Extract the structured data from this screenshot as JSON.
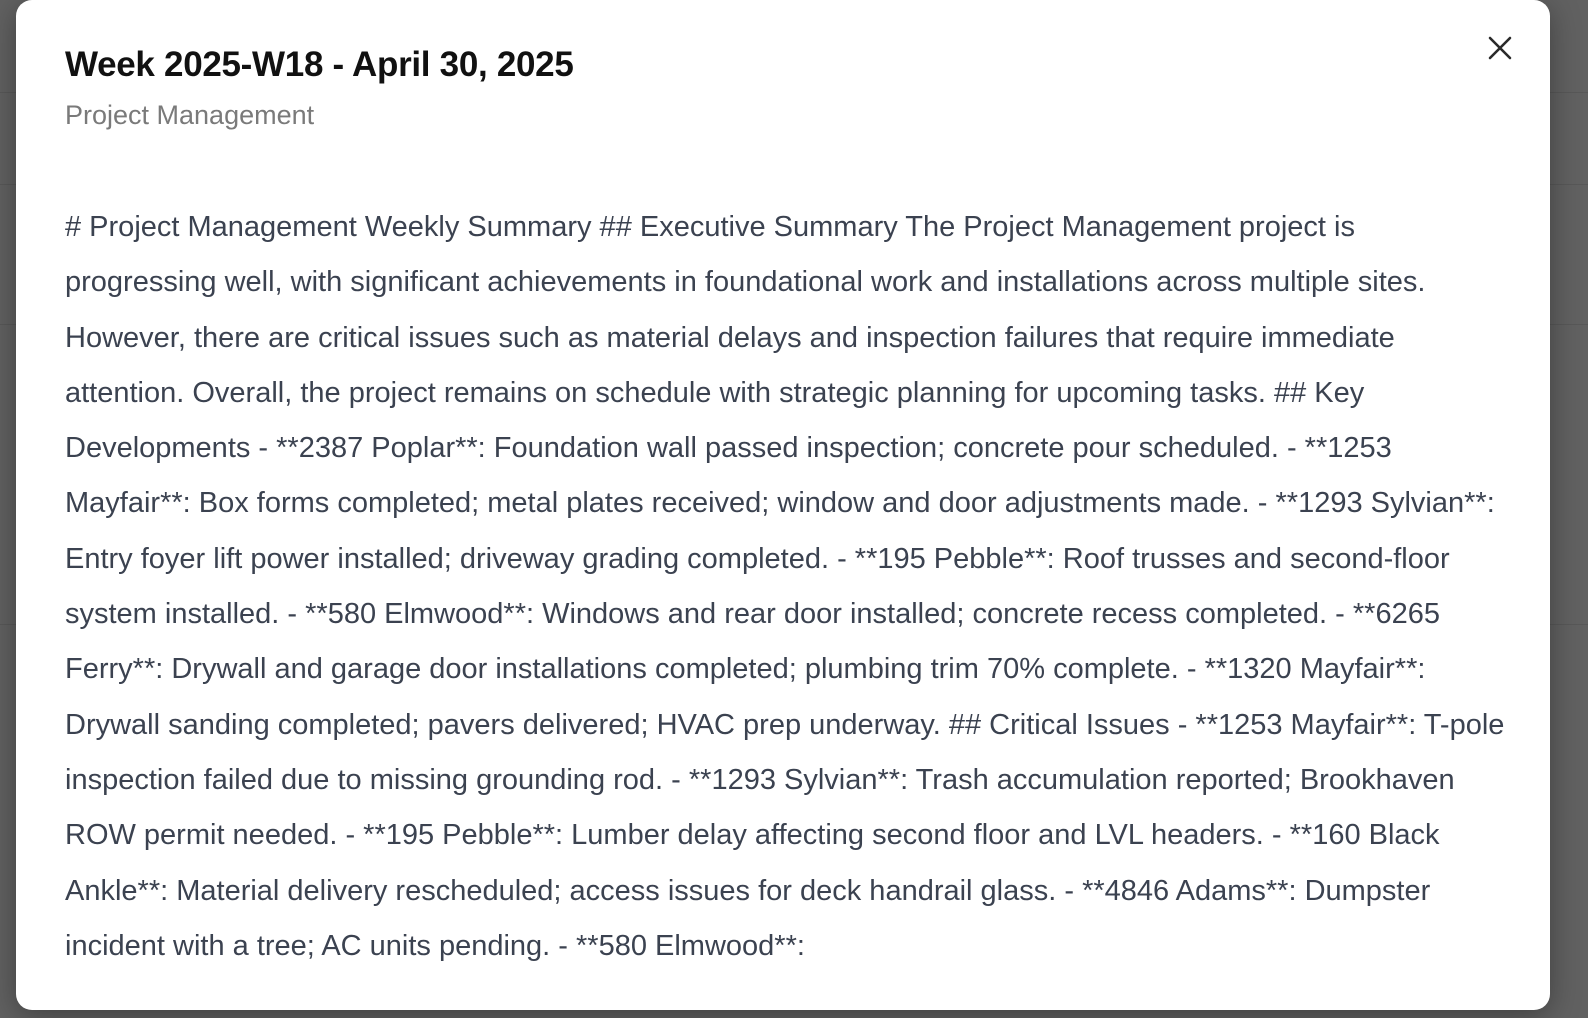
{
  "modal": {
    "title": "Week 2025-W18 - April 30, 2025",
    "subtitle": "Project Management",
    "close_icon": "close-icon",
    "body": "# Project Management Weekly Summary ## Executive Summary The Project Management project is progressing well, with significant achievements in foundational work and installations across multiple sites. However, there are critical issues such as material delays and inspection failures that require immediate attention. Overall, the project remains on schedule with strategic planning for upcoming tasks. ## Key Developments - **2387 Poplar**: Foundation wall passed inspection; concrete pour scheduled. - **1253 Mayfair**: Box forms completed; metal plates received; window and door adjustments made. - **1293 Sylvian**: Entry foyer lift power installed; driveway grading completed. - **195 Pebble**: Roof trusses and second-floor system installed. - **580 Elmwood**: Windows and rear door installed; concrete recess completed. - **6265 Ferry**: Drywall and garage door installations completed; plumbing trim 70% complete. - **1320 Mayfair**: Drywall sanding completed; pavers delivered; HVAC prep underway. ## Critical Issues - **1253 Mayfair**: T-pole inspection failed due to missing grounding rod. - **1293 Sylvian**: Trash accumulation reported; Brookhaven ROW permit needed. - **195 Pebble**: Lumber delay affecting second floor and LVL headers. - **160 Black Ankle**: Material delivery rescheduled; access issues for deck handrail glass. - **4846 Adams**: Dumpster incident with a tree; AC units pending. - **580 Elmwood**:"
  },
  "colors": {
    "overlay": "#000000",
    "modal_bg": "#ffffff",
    "title": "#111111",
    "subtitle": "#7a7a7a",
    "body_text": "#3b4250"
  }
}
